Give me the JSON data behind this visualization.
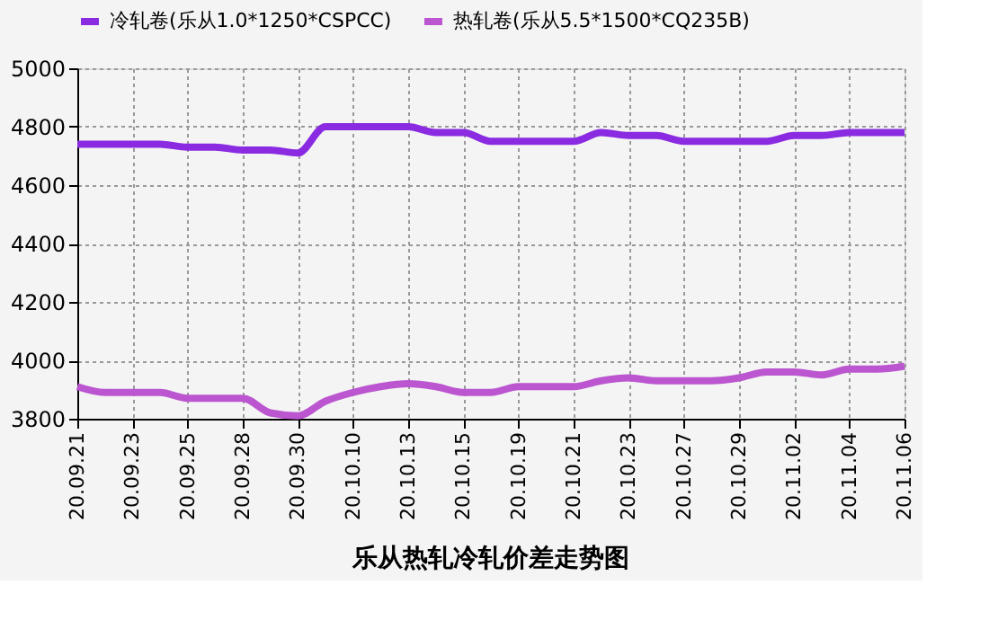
{
  "chart_data": {
    "type": "line",
    "title": "乐从热轧冷轧价差走势图",
    "categories": [
      "20.09.21",
      null,
      "20.09.23",
      null,
      "20.09.25",
      null,
      "20.09.28",
      null,
      "20.09.30",
      null,
      "20.10.10",
      null,
      "20.10.13",
      null,
      "20.10.15",
      null,
      "20.10.19",
      null,
      "20.10.21",
      null,
      "20.10.23",
      null,
      "20.10.27",
      null,
      "20.10.29",
      null,
      "20.11.02",
      null,
      "20.11.04",
      null,
      "20.11.06"
    ],
    "series": [
      {
        "name": "冷轧卷(乐从1.0*1250*CSPCC)",
        "color": "#8a2be2",
        "values": [
          4740,
          4740,
          4740,
          4740,
          4730,
          4730,
          4720,
          4720,
          4710,
          4800,
          4800,
          4800,
          4800,
          4780,
          4780,
          4750,
          4750,
          4750,
          4750,
          4780,
          4770,
          4770,
          4750,
          4750,
          4750,
          4750,
          4770,
          4770,
          4780,
          4780,
          4780
        ]
      },
      {
        "name": "热轧卷(乐从5.5*1500*CQ235B)",
        "color": "#bb55d0",
        "values": [
          3910,
          3890,
          3890,
          3890,
          3870,
          3870,
          3870,
          3820,
          3810,
          3860,
          3890,
          3910,
          3920,
          3910,
          3890,
          3890,
          3910,
          3910,
          3910,
          3930,
          3940,
          3930,
          3930,
          3930,
          3940,
          3960,
          3960,
          3950,
          3970,
          3970,
          3980
        ]
      }
    ],
    "ylim": [
      3800,
      5000
    ],
    "yticks": [
      3800,
      4000,
      4200,
      4400,
      4600,
      4800,
      5000
    ],
    "grid": true,
    "legend": "top",
    "marker": "none",
    "line_style": "solid"
  }
}
